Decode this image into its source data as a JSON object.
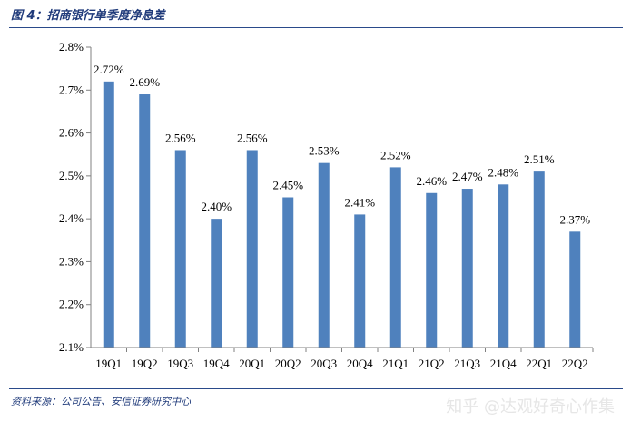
{
  "figure": {
    "title": "图 4：招商银行单季度净息差",
    "source": "资料来源：公司公告、安信证券研究中心",
    "watermark": "知乎 @达观好奇心作集"
  },
  "colors": {
    "bar": "#4f81bd",
    "title": "#1f3a7a",
    "axis": "#808080"
  },
  "chart_data": {
    "type": "bar",
    "title": "招商银行单季度净息差",
    "xlabel": "",
    "ylabel": "",
    "ylim": [
      2.1,
      2.8
    ],
    "yticks": [
      2.1,
      2.2,
      2.3,
      2.4,
      2.5,
      2.6,
      2.7,
      2.8
    ],
    "ytick_labels": [
      "2.1%",
      "2.2%",
      "2.3%",
      "2.4%",
      "2.5%",
      "2.6%",
      "2.7%",
      "2.8%"
    ],
    "grid": false,
    "categories": [
      "19Q1",
      "19Q2",
      "19Q3",
      "19Q4",
      "20Q1",
      "20Q2",
      "20Q3",
      "20Q4",
      "21Q1",
      "21Q2",
      "21Q3",
      "21Q4",
      "22Q1",
      "22Q2"
    ],
    "values": [
      2.72,
      2.69,
      2.56,
      2.4,
      2.56,
      2.45,
      2.53,
      2.41,
      2.52,
      2.46,
      2.47,
      2.48,
      2.51,
      2.37
    ],
    "data_labels": [
      "2.72%",
      "2.69%",
      "2.56%",
      "2.40%",
      "2.56%",
      "2.45%",
      "2.53%",
      "2.41%",
      "2.52%",
      "2.46%",
      "2.47%",
      "2.48%",
      "2.51%",
      "2.37%"
    ]
  }
}
